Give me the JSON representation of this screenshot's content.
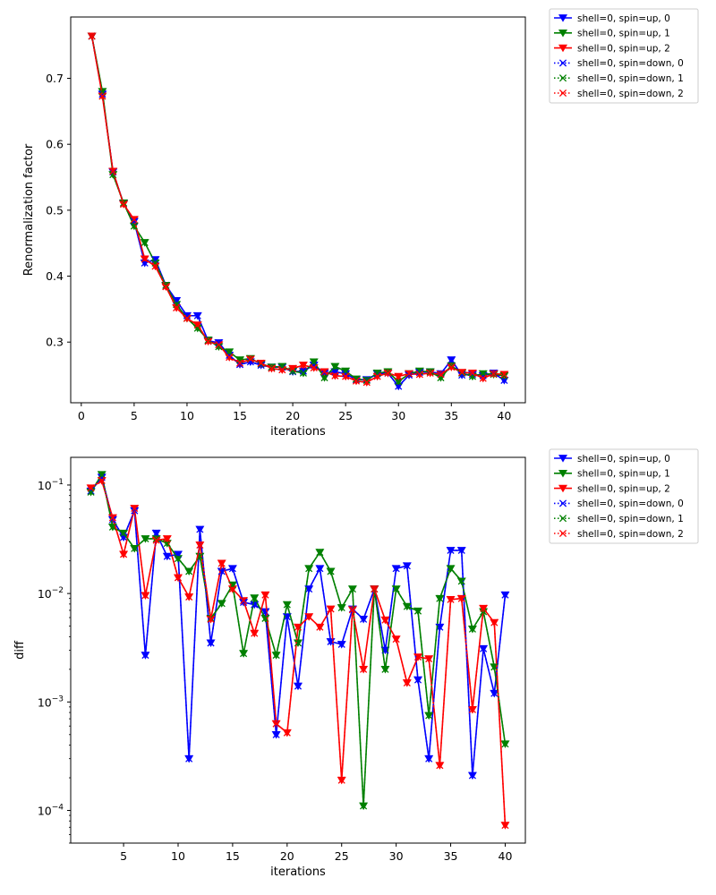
{
  "chart_data": [
    {
      "type": "line",
      "xlabel": "iterations",
      "ylabel": "Renormalization factor",
      "yscale": "linear",
      "xlim": [
        -1,
        42
      ],
      "ylim": [
        0.208,
        0.793
      ],
      "xticks": [
        0,
        5,
        10,
        15,
        20,
        25,
        30,
        35,
        40
      ],
      "yticks": [
        0.3,
        0.4,
        0.5,
        0.6,
        0.7
      ],
      "ytick_labels": [
        "0.3",
        "0.4",
        "0.5",
        "0.6",
        "0.7"
      ],
      "legend_position": "outside-top-right",
      "x": [
        1,
        2,
        3,
        4,
        5,
        6,
        7,
        8,
        9,
        10,
        11,
        12,
        13,
        14,
        15,
        16,
        17,
        18,
        19,
        20,
        21,
        22,
        23,
        24,
        25,
        26,
        27,
        28,
        29,
        30,
        31,
        32,
        33,
        34,
        35,
        36,
        37,
        38,
        39,
        40
      ],
      "series": [
        {
          "name": "shell=0, spin=up, 0",
          "color": "#0000ff",
          "linestyle": "solid",
          "marker": "triangle-down",
          "values": [
            0.764,
            0.676,
            0.558,
            0.51,
            0.483,
            0.42,
            0.425,
            0.386,
            0.363,
            0.34,
            0.34,
            0.302,
            0.299,
            0.28,
            0.266,
            0.27,
            0.265,
            0.262,
            0.262,
            0.255,
            0.256,
            0.265,
            0.253,
            0.255,
            0.252,
            0.243,
            0.243,
            0.252,
            0.253,
            0.233,
            0.25,
            0.254,
            0.255,
            0.252,
            0.273,
            0.25,
            0.251,
            0.249,
            0.253,
            0.242
          ]
        },
        {
          "name": "shell=0, spin=up, 1",
          "color": "#008000",
          "linestyle": "solid",
          "marker": "triangle-down",
          "values": [
            0.764,
            0.68,
            0.554,
            0.511,
            0.476,
            0.451,
            0.42,
            0.386,
            0.357,
            0.336,
            0.321,
            0.303,
            0.293,
            0.285,
            0.273,
            0.275,
            0.267,
            0.262,
            0.263,
            0.256,
            0.253,
            0.27,
            0.246,
            0.263,
            0.256,
            0.244,
            0.242,
            0.253,
            0.255,
            0.24,
            0.252,
            0.256,
            0.255,
            0.246,
            0.264,
            0.253,
            0.248,
            0.252,
            0.251,
            0.249
          ]
        },
        {
          "name": "shell=0, spin=up, 2",
          "color": "#ff0000",
          "linestyle": "solid",
          "marker": "triangle-down",
          "values": [
            0.764,
            0.673,
            0.559,
            0.509,
            0.486,
            0.426,
            0.415,
            0.384,
            0.352,
            0.336,
            0.326,
            0.301,
            0.296,
            0.277,
            0.268,
            0.274,
            0.268,
            0.26,
            0.258,
            0.26,
            0.265,
            0.261,
            0.255,
            0.249,
            0.248,
            0.241,
            0.239,
            0.248,
            0.253,
            0.248,
            0.252,
            0.251,
            0.253,
            0.251,
            0.262,
            0.254,
            0.253,
            0.245,
            0.252,
            0.251
          ]
        },
        {
          "name": "shell=0, spin=down, 0",
          "color": "#0000ff",
          "linestyle": "dotted",
          "marker": "x",
          "values": [
            0.764,
            0.676,
            0.558,
            0.51,
            0.483,
            0.42,
            0.425,
            0.386,
            0.363,
            0.34,
            0.34,
            0.302,
            0.299,
            0.28,
            0.266,
            0.27,
            0.265,
            0.262,
            0.262,
            0.255,
            0.256,
            0.265,
            0.253,
            0.255,
            0.252,
            0.243,
            0.243,
            0.252,
            0.253,
            0.233,
            0.25,
            0.254,
            0.255,
            0.252,
            0.273,
            0.25,
            0.251,
            0.249,
            0.253,
            0.242
          ]
        },
        {
          "name": "shell=0, spin=down, 1",
          "color": "#008000",
          "linestyle": "dotted",
          "marker": "x",
          "values": [
            0.764,
            0.68,
            0.554,
            0.511,
            0.476,
            0.451,
            0.42,
            0.386,
            0.357,
            0.336,
            0.321,
            0.303,
            0.293,
            0.285,
            0.273,
            0.275,
            0.267,
            0.262,
            0.263,
            0.256,
            0.253,
            0.27,
            0.246,
            0.263,
            0.256,
            0.244,
            0.242,
            0.253,
            0.255,
            0.24,
            0.252,
            0.256,
            0.255,
            0.246,
            0.264,
            0.253,
            0.248,
            0.252,
            0.251,
            0.249
          ]
        },
        {
          "name": "shell=0, spin=down, 2",
          "color": "#ff0000",
          "linestyle": "dotted",
          "marker": "x",
          "values": [
            0.764,
            0.673,
            0.559,
            0.509,
            0.486,
            0.426,
            0.415,
            0.384,
            0.352,
            0.336,
            0.326,
            0.301,
            0.296,
            0.277,
            0.268,
            0.274,
            0.268,
            0.26,
            0.258,
            0.26,
            0.265,
            0.261,
            0.255,
            0.249,
            0.248,
            0.241,
            0.239,
            0.248,
            0.253,
            0.248,
            0.252,
            0.251,
            0.253,
            0.251,
            0.262,
            0.254,
            0.253,
            0.245,
            0.252,
            0.251
          ]
        }
      ]
    },
    {
      "type": "line",
      "xlabel": "iterations",
      "ylabel": "diff",
      "yscale": "log",
      "xlim": [
        0.15,
        41.85
      ],
      "ylim": [
        5e-05,
        0.18
      ],
      "xticks": [
        5,
        10,
        15,
        20,
        25,
        30,
        35,
        40
      ],
      "yticks": [
        0.0001,
        0.001,
        0.01,
        0.1
      ],
      "ytick_base": "10",
      "ytick_exponents": [
        "−4",
        "−3",
        "−2",
        "−1"
      ],
      "legend_position": "outside-top-right",
      "x": [
        2,
        3,
        4,
        5,
        6,
        7,
        8,
        9,
        10,
        11,
        12,
        13,
        14,
        15,
        16,
        17,
        18,
        19,
        20,
        21,
        22,
        23,
        24,
        25,
        26,
        27,
        28,
        29,
        30,
        31,
        32,
        33,
        34,
        35,
        36,
        37,
        38,
        39,
        40
      ],
      "series": [
        {
          "name": "shell=0, spin=up, 0",
          "color": "#0000ff",
          "linestyle": "solid",
          "marker": "triangle-down",
          "values": [
            0.088,
            0.118,
            0.048,
            0.033,
            0.058,
            0.0027,
            0.036,
            0.022,
            0.023,
            0.0003,
            0.039,
            0.0035,
            0.016,
            0.017,
            0.0083,
            0.0079,
            0.0068,
            0.0005,
            0.0061,
            0.0014,
            0.011,
            0.017,
            0.0036,
            0.0034,
            0.0072,
            0.0058,
            0.011,
            0.003,
            0.017,
            0.018,
            0.0016,
            0.0003,
            0.0049,
            0.025,
            0.025,
            0.00021,
            0.0031,
            0.0012,
            0.0097
          ]
        },
        {
          "name": "shell=0, spin=up, 1",
          "color": "#008000",
          "linestyle": "solid",
          "marker": "triangle-down",
          "values": [
            0.086,
            0.125,
            0.041,
            0.036,
            0.026,
            0.032,
            0.032,
            0.029,
            0.021,
            0.016,
            0.022,
            0.0059,
            0.0081,
            0.012,
            0.0028,
            0.0091,
            0.0059,
            0.0027,
            0.0079,
            0.0035,
            0.017,
            0.024,
            0.016,
            0.0074,
            0.011,
            0.00011,
            0.011,
            0.002,
            0.011,
            0.0076,
            0.0069,
            0.00075,
            0.009,
            0.017,
            0.013,
            0.0047,
            0.0068,
            0.0021,
            0.00041
          ]
        },
        {
          "name": "shell=0, spin=up, 2",
          "color": "#ff0000",
          "linestyle": "solid",
          "marker": "triangle-down",
          "values": [
            0.094,
            0.11,
            0.05,
            0.023,
            0.061,
            0.0096,
            0.031,
            0.032,
            0.014,
            0.0093,
            0.028,
            0.0058,
            0.019,
            0.011,
            0.0086,
            0.0043,
            0.0097,
            0.00063,
            0.00052,
            0.0049,
            0.0061,
            0.0049,
            0.0072,
            0.00019,
            0.0071,
            0.002,
            0.011,
            0.0057,
            0.0038,
            0.0015,
            0.0026,
            0.0025,
            0.00026,
            0.0088,
            0.009,
            0.00085,
            0.0073,
            0.0054,
            7.3e-05
          ]
        },
        {
          "name": "shell=0, spin=down, 0",
          "color": "#0000ff",
          "linestyle": "dotted",
          "marker": "x",
          "values": [
            0.088,
            0.118,
            0.048,
            0.033,
            0.058,
            0.0027,
            0.036,
            0.022,
            0.023,
            0.0003,
            0.039,
            0.0035,
            0.016,
            0.017,
            0.0083,
            0.0079,
            0.0068,
            0.0005,
            0.0061,
            0.0014,
            0.011,
            0.017,
            0.0036,
            0.0034,
            0.0072,
            0.0058,
            0.011,
            0.003,
            0.017,
            0.018,
            0.0016,
            0.0003,
            0.0049,
            0.025,
            0.025,
            0.00021,
            0.0031,
            0.0012,
            0.0097
          ]
        },
        {
          "name": "shell=0, spin=down, 1",
          "color": "#008000",
          "linestyle": "dotted",
          "marker": "x",
          "values": [
            0.086,
            0.125,
            0.041,
            0.036,
            0.026,
            0.032,
            0.032,
            0.029,
            0.021,
            0.016,
            0.022,
            0.0059,
            0.0081,
            0.012,
            0.0028,
            0.0091,
            0.0059,
            0.0027,
            0.0079,
            0.0035,
            0.017,
            0.024,
            0.016,
            0.0074,
            0.011,
            0.00011,
            0.011,
            0.002,
            0.011,
            0.0076,
            0.0069,
            0.00075,
            0.009,
            0.017,
            0.013,
            0.0047,
            0.0068,
            0.0021,
            0.00041
          ]
        },
        {
          "name": "shell=0, spin=down, 2",
          "color": "#ff0000",
          "linestyle": "dotted",
          "marker": "x",
          "values": [
            0.094,
            0.11,
            0.05,
            0.023,
            0.061,
            0.0096,
            0.031,
            0.032,
            0.014,
            0.0093,
            0.028,
            0.0058,
            0.019,
            0.011,
            0.0086,
            0.0043,
            0.0097,
            0.00063,
            0.00052,
            0.0049,
            0.0061,
            0.0049,
            0.0072,
            0.00019,
            0.0071,
            0.002,
            0.011,
            0.0057,
            0.0038,
            0.0015,
            0.0026,
            0.0025,
            0.00026,
            0.0088,
            0.009,
            0.00085,
            0.0073,
            0.0054,
            7.3e-05
          ]
        }
      ]
    }
  ]
}
